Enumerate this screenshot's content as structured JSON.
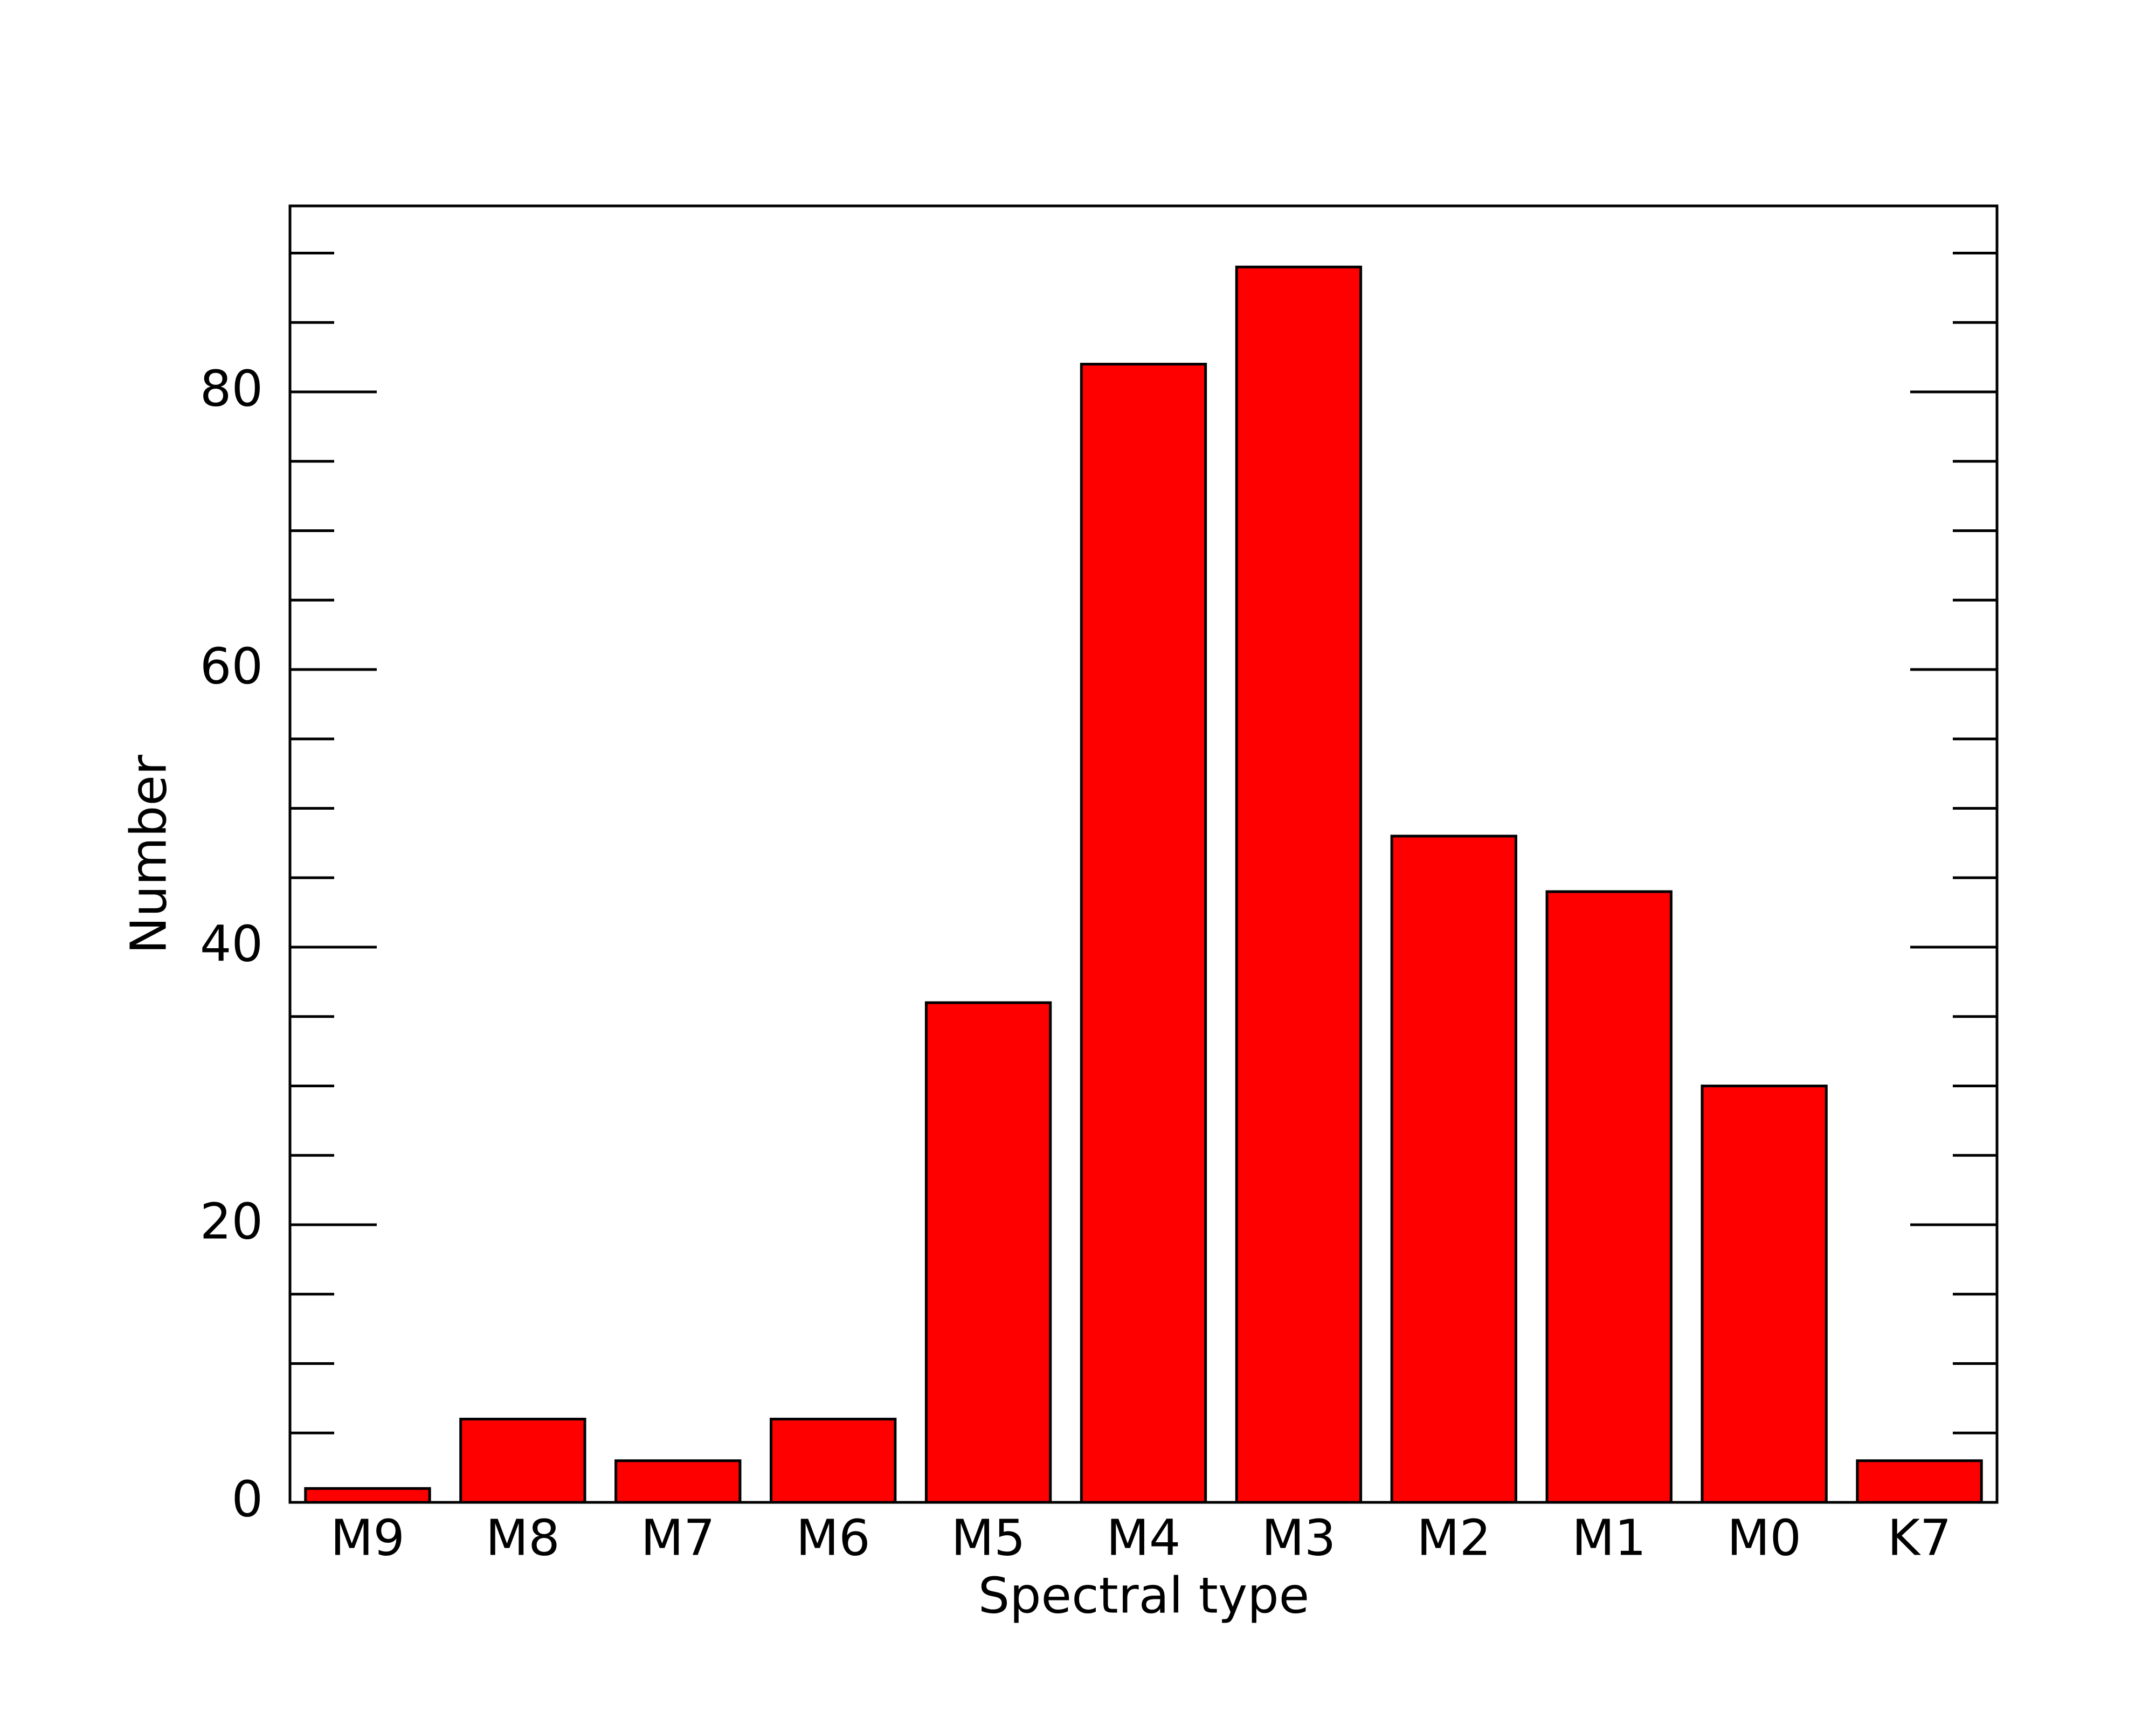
{
  "chart_data": {
    "type": "bar",
    "x_label": "Spectral type",
    "y_label": "Number",
    "categories": [
      "M9",
      "M8",
      "M7",
      "M6",
      "M5",
      "M4",
      "M3",
      "M2",
      "M1",
      "M0",
      "K7"
    ],
    "values": [
      1,
      6,
      3,
      6,
      36,
      82,
      89,
      48,
      44,
      30,
      3
    ],
    "color": "#ff0000",
    "ylim": [
      0,
      93.4
    ],
    "yticks": [
      0,
      20,
      40,
      60,
      80
    ],
    "yminorticks": [
      5,
      10,
      15,
      25,
      30,
      35,
      45,
      50,
      55,
      65,
      70,
      75,
      85,
      90
    ],
    "grid": false
  }
}
